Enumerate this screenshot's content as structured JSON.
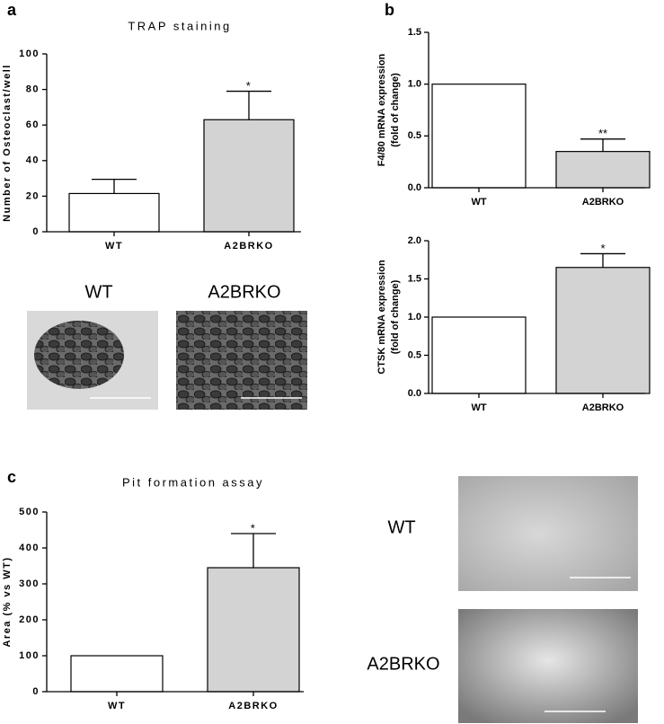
{
  "chart_data": [
    {
      "type": "bar",
      "panel": "a",
      "title": "TRAP staining",
      "ylabel": "Number of Osteoclast/well",
      "categories": [
        "WT",
        "A2BRKO"
      ],
      "values": [
        21.5,
        63
      ],
      "errors": [
        8,
        16
      ],
      "significance": [
        null,
        "*"
      ],
      "colors": [
        "#ffffff",
        "#d3d3d3"
      ],
      "ylim": [
        0,
        100
      ],
      "yticks": [
        0,
        20,
        40,
        60,
        80,
        100
      ]
    },
    {
      "type": "bar",
      "panel": "b",
      "ylabel": [
        "F4/80 mRNA expression",
        "(fold of change)"
      ],
      "categories": [
        "WT",
        "A2BRKO"
      ],
      "values": [
        1.0,
        0.35
      ],
      "errors": [
        0,
        0.12
      ],
      "significance": [
        null,
        "**"
      ],
      "colors": [
        "#ffffff",
        "#d3d3d3"
      ],
      "ylim": [
        0,
        1.5
      ],
      "yticks": [
        {
          "value": 0,
          "label": "0.0"
        },
        0.5,
        {
          "value": 1,
          "label": "1.0"
        },
        1.5
      ]
    },
    {
      "type": "bar",
      "ylabel": [
        "CTSK mRNA expression",
        "(fold of change)"
      ],
      "categories": [
        "WT",
        "A2BRKO"
      ],
      "values": [
        1.0,
        1.65
      ],
      "errors": [
        0,
        0.18
      ],
      "significance": [
        null,
        "*"
      ],
      "colors": [
        "#ffffff",
        "#d3d3d3"
      ],
      "ylim": [
        0,
        2
      ],
      "yticks": [
        {
          "value": 0,
          "label": "0.0"
        },
        0.5,
        {
          "value": 1,
          "label": "1.0"
        },
        1.5,
        {
          "value": 2,
          "label": "2.0"
        }
      ]
    },
    {
      "type": "bar",
      "panel": "c",
      "title": "Pit formation assay",
      "ylabel": "Area (% vs WT)",
      "categories": [
        "WT",
        "A2BRKO"
      ],
      "values": [
        100,
        345
      ],
      "errors": [
        0,
        95
      ],
      "significance": [
        null,
        "*"
      ],
      "colors": [
        "#ffffff",
        "#d3d3d3"
      ],
      "ylim": [
        0,
        500
      ],
      "yticks": [
        0,
        100,
        200,
        300,
        400,
        500
      ]
    }
  ],
  "micrographs": {
    "trap": [
      "WT",
      "A2BRKO"
    ],
    "pit": [
      "WT",
      "A2BRKO"
    ]
  }
}
